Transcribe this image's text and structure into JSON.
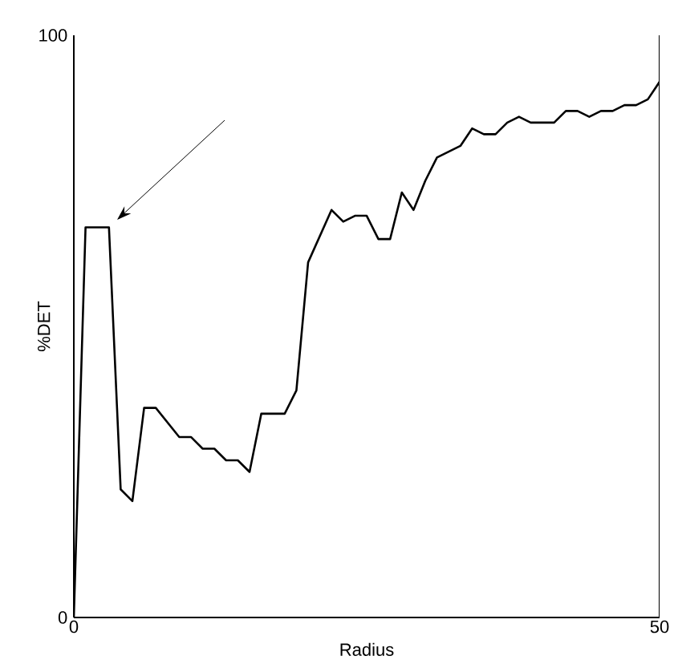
{
  "chart_data": {
    "type": "line",
    "xlabel": "Radius",
    "ylabel": "%DET",
    "series": [
      {
        "color": "#000000",
        "x": [
          0,
          1,
          3,
          4,
          5,
          6,
          7,
          9,
          10,
          11,
          12,
          13,
          14,
          15,
          16,
          18,
          19,
          20,
          22,
          23,
          24,
          25,
          26,
          27,
          28,
          29,
          30,
          31,
          32,
          33,
          34,
          35,
          36,
          37,
          38,
          39,
          40,
          41,
          42,
          43,
          44,
          45,
          46,
          47,
          48,
          49,
          50
        ],
        "values": [
          0,
          67,
          67,
          22,
          20,
          36,
          36,
          31,
          31,
          29,
          29,
          27,
          27,
          25,
          35,
          35,
          39,
          61,
          70,
          68,
          69,
          69,
          65,
          65,
          73,
          70,
          75,
          79,
          80,
          81,
          84,
          83,
          83,
          85,
          86,
          85,
          85,
          85,
          87,
          87,
          86,
          87,
          87,
          88,
          88,
          89,
          92
        ]
      }
    ],
    "xlim": [
      0,
      50
    ],
    "ylim": [
      0,
      100
    ],
    "xticks": [
      0,
      50
    ],
    "yticks": [
      0,
      100
    ],
    "grid": false,
    "marker": "none",
    "line_style": "solid"
  }
}
